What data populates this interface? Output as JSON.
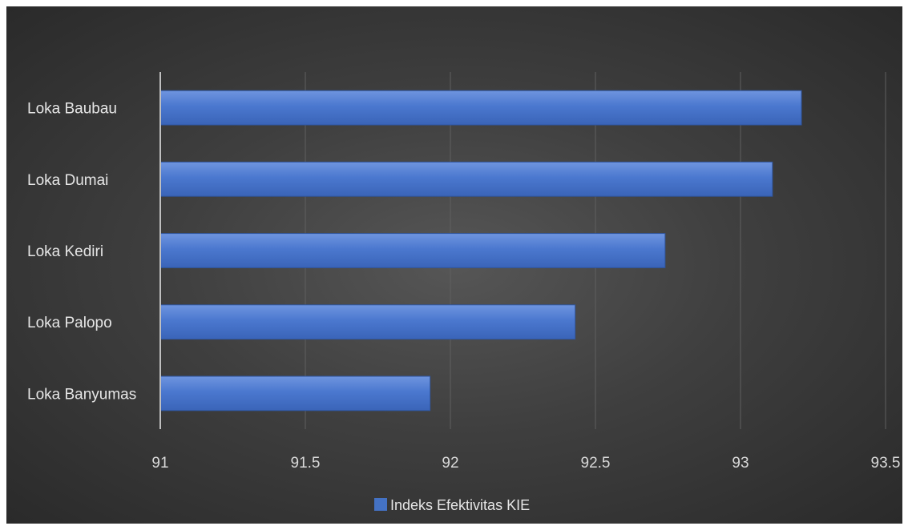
{
  "chart_data": {
    "type": "bar",
    "orientation": "horizontal",
    "categories": [
      "Loka Baubau",
      "Loka Dumai",
      "Loka Kediri",
      "Loka Palopo",
      "Loka Banyumas"
    ],
    "series": [
      {
        "name": "Indeks Efektivitas KIE",
        "values": [
          93.21,
          93.11,
          92.74,
          92.43,
          91.93
        ],
        "color": "#4472c4"
      }
    ],
    "xlim": [
      91,
      93.5
    ],
    "xticks": [
      "91",
      "91.5",
      "92",
      "92.5",
      "93",
      "93.5"
    ],
    "grid": true,
    "legend_position": "bottom"
  }
}
